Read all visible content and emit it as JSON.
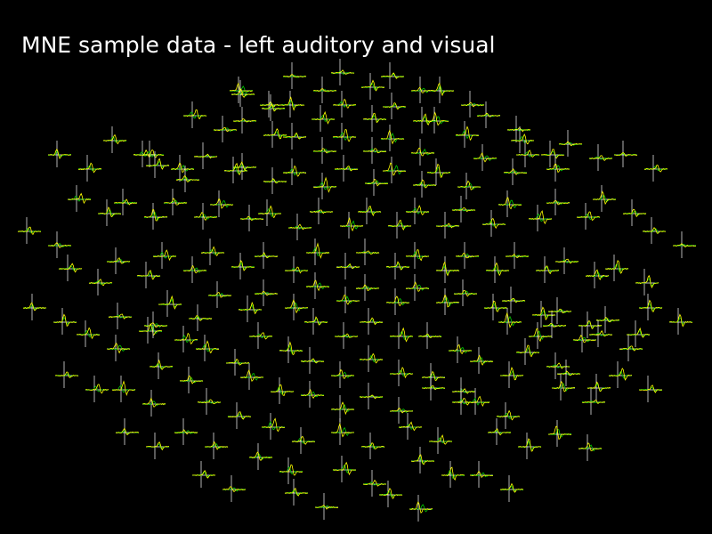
{
  "title": "MNE sample data - left auditory and visual",
  "chart_data": {
    "type": "line",
    "title": "MNE sample data - left auditory and visual",
    "layout": "sensor topography (MEG gradiometer pairs)",
    "background": "#000000",
    "axis_color": "#ffffff",
    "series_colors": [
      "#ffff00",
      "#00cc00"
    ],
    "grid": false,
    "legend": "none",
    "tick_labels": false
  }
}
